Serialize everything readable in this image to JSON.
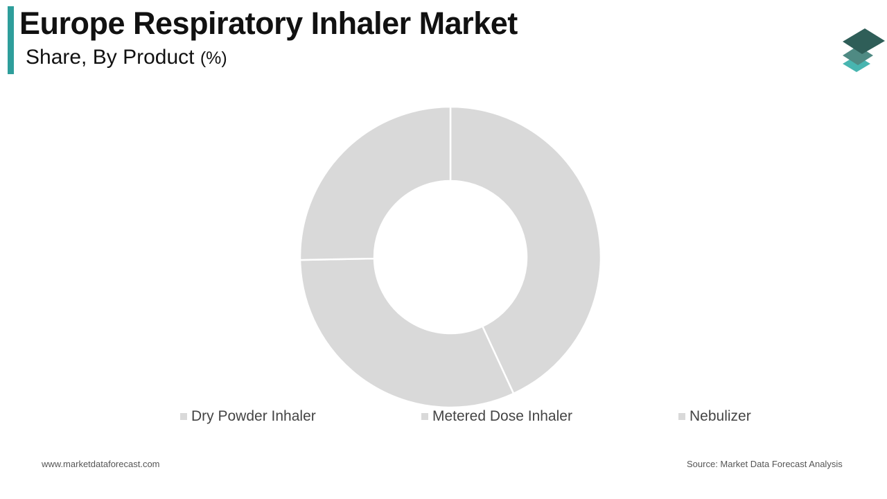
{
  "header": {
    "title": "Europe Respiratory Inhaler Market",
    "subtitle": "Share, By Product",
    "unit": "(%)"
  },
  "colors": {
    "accent": "#2e9e9b",
    "slice_fill": "#d9d9d9",
    "slice_border": "#ffffff",
    "logo_top": "#2f5e58",
    "logo_mid": "#4f8a83",
    "logo_bottom": "#48b5b0"
  },
  "logo": {
    "icon": "layers-icon"
  },
  "chart_data": {
    "type": "pie",
    "variant": "donut",
    "categories": [
      "Dry Powder Inhaler",
      "Metered Dose Inhaler",
      "Nebulizer"
    ],
    "values": [
      43.1,
      31.6,
      25.3
    ],
    "legend_position": "bottom"
  },
  "footer": {
    "website": "www.marketdataforecast.com",
    "source": "Source: Market Data Forecast Analysis"
  }
}
